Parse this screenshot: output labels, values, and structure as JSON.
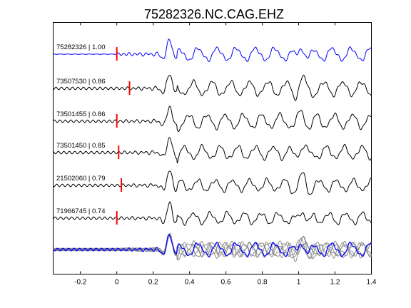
{
  "chart_data": {
    "type": "line",
    "title": "75282326.NC.CAG.EHZ",
    "xlabel": "",
    "ylabel": "",
    "xlim": [
      -0.35,
      1.4
    ],
    "xticks": [
      -0.2,
      0,
      0.2,
      0.4,
      0.6,
      0.8,
      1,
      1.2,
      1.4
    ],
    "xtick_labels": [
      "-0.2",
      "0",
      "0.2",
      "0.4",
      "0.6",
      "0.8",
      "1",
      "1.2",
      "1.4"
    ],
    "grid": false,
    "legend": "none",
    "colors": {
      "master": "#0000ff",
      "trace": "#000000",
      "pick": "#ff0000",
      "overlay": "#8c8c8c",
      "axes": "#000000"
    },
    "series": [
      {
        "name": "75282326 | 1.00",
        "pick_time": 0.0,
        "color": "#0000ff"
      },
      {
        "name": "73507530 | 0.86",
        "pick_time": 0.07,
        "color": "#000000"
      },
      {
        "name": "73501455 | 0.86",
        "pick_time": 0.0,
        "color": "#000000"
      },
      {
        "name": "73501450 | 0.85",
        "pick_time": 0.01,
        "color": "#000000"
      },
      {
        "name": "21502060 | 0.79",
        "pick_time": 0.025,
        "color": "#000000"
      },
      {
        "name": "71966745 | 0.74",
        "pick_time": 0.0,
        "color": "#000000"
      }
    ],
    "stack": {
      "type": "overlay of all traces",
      "color": "#8c8c8c",
      "top_color": "#0000ff"
    }
  }
}
